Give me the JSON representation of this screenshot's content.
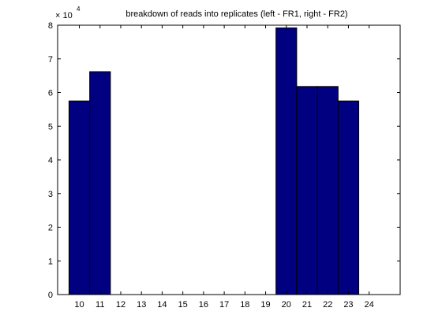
{
  "chart_data": {
    "type": "bar",
    "title": "breakdown of reads into replicates (left - FR1, right - FR2)",
    "y_multiplier_base": "× 10",
    "y_multiplier_exponent": "4",
    "x_ticks": [
      "10",
      "11",
      "12",
      "13",
      "14",
      "15",
      "16",
      "17",
      "18",
      "19",
      "20",
      "21",
      "22",
      "23",
      "24"
    ],
    "y_ticks": [
      "0",
      "1",
      "2",
      "3",
      "4",
      "5",
      "6",
      "7",
      "8"
    ],
    "bars": [
      {
        "x": 10,
        "value": 5.75
      },
      {
        "x": 11,
        "value": 6.62
      },
      {
        "x": 12,
        "value": 0
      },
      {
        "x": 13,
        "value": 0
      },
      {
        "x": 14,
        "value": 0
      },
      {
        "x": 15,
        "value": 0
      },
      {
        "x": 16,
        "value": 0
      },
      {
        "x": 17,
        "value": 0
      },
      {
        "x": 18,
        "value": 0
      },
      {
        "x": 19,
        "value": 0
      },
      {
        "x": 20,
        "value": 7.92
      },
      {
        "x": 21,
        "value": 6.18
      },
      {
        "x": 22,
        "value": 6.18
      },
      {
        "x": 23,
        "value": 5.75
      }
    ],
    "xlim": [
      8.95,
      25.5
    ],
    "ylim": [
      0,
      8
    ],
    "bar_color": "#000080",
    "edge_color": "#000000",
    "grid": false
  }
}
